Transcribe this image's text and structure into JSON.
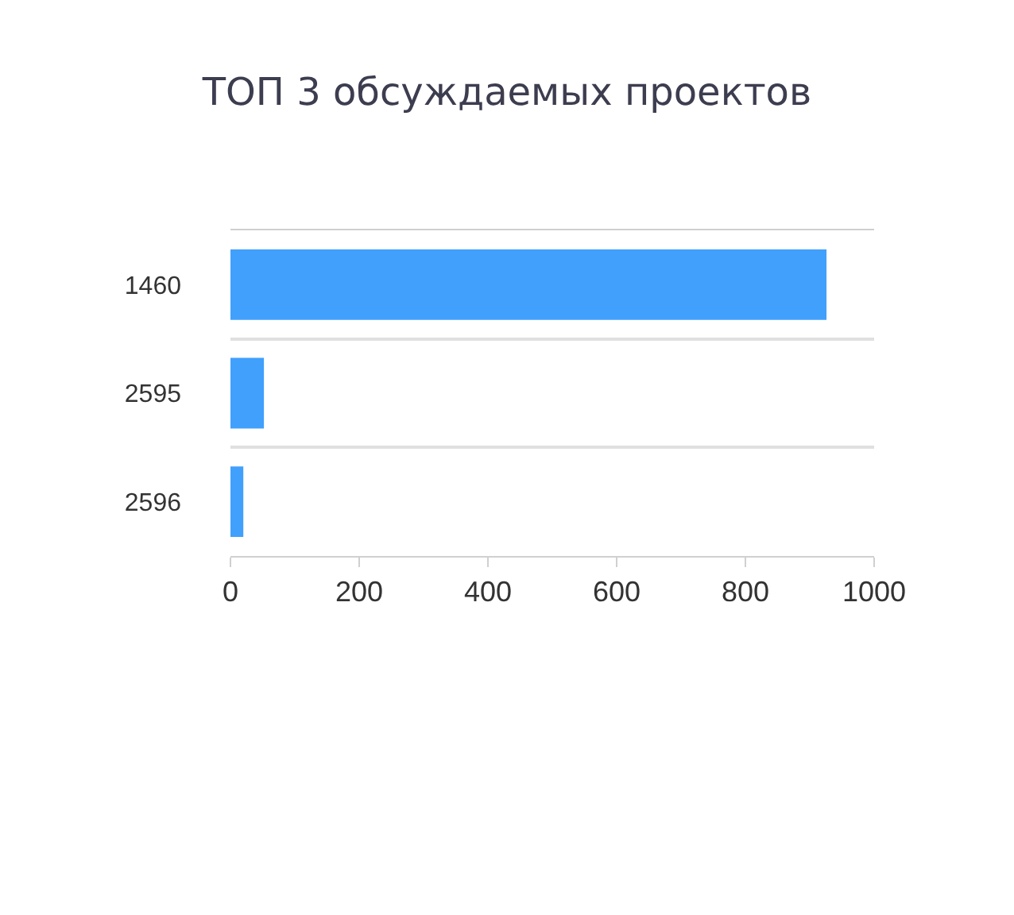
{
  "chart_data": {
    "type": "bar",
    "orientation": "horizontal",
    "title": "ТОП 3 обсуждаемых проектов",
    "categories": [
      "1460",
      "2595",
      "2596"
    ],
    "values": [
      926,
      52,
      20
    ],
    "color": "#40a0fc",
    "xlim": [
      0,
      1000
    ],
    "xticks": [
      0,
      200,
      400,
      600,
      800,
      1000
    ],
    "grid": "y"
  }
}
